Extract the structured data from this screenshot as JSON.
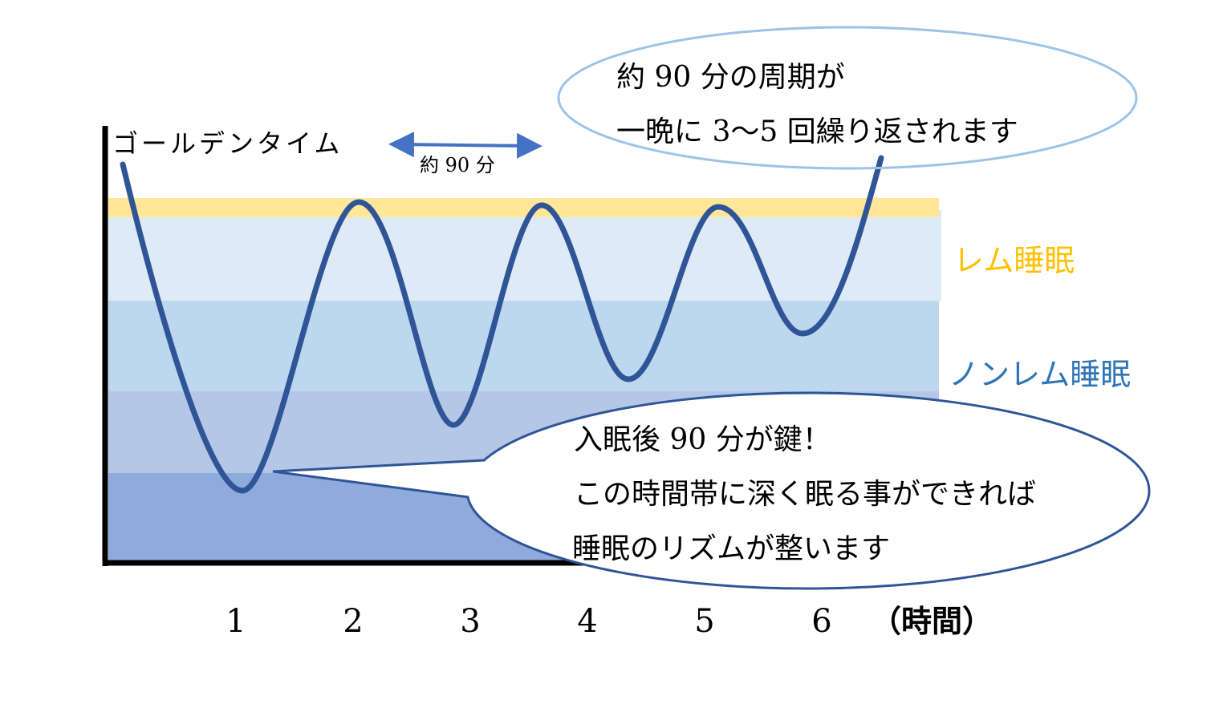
{
  "golden_time_label": "ゴールデンタイム",
  "interval_label": "約 90 分",
  "top_callout": {
    "line1": "約 90 分の周期が",
    "line2": "一晩に 3～5 回繰り返されます"
  },
  "bottom_callout": {
    "line1": "入眠後 90 分が鍵！",
    "line2": "この時間帯に深く眠る事ができれば",
    "line3": "睡眠のリズムが整います"
  },
  "legend": {
    "rem": "レム睡眠",
    "nonrem": "ノンレム睡眠"
  },
  "x_axis": {
    "ticks": [
      "1",
      "2",
      "3",
      "4",
      "5",
      "6"
    ],
    "unit": "（時間）"
  },
  "colors": {
    "rem_band": "#ffe699",
    "band1": "#deebf7",
    "band2": "#bdd7ee",
    "band3": "#b4c7e7",
    "band4": "#8faadc",
    "curve": "#2f5597",
    "arrow": "#4472c4",
    "rem_text": "#ffc000",
    "nonrem_text": "#2e75b6"
  }
}
